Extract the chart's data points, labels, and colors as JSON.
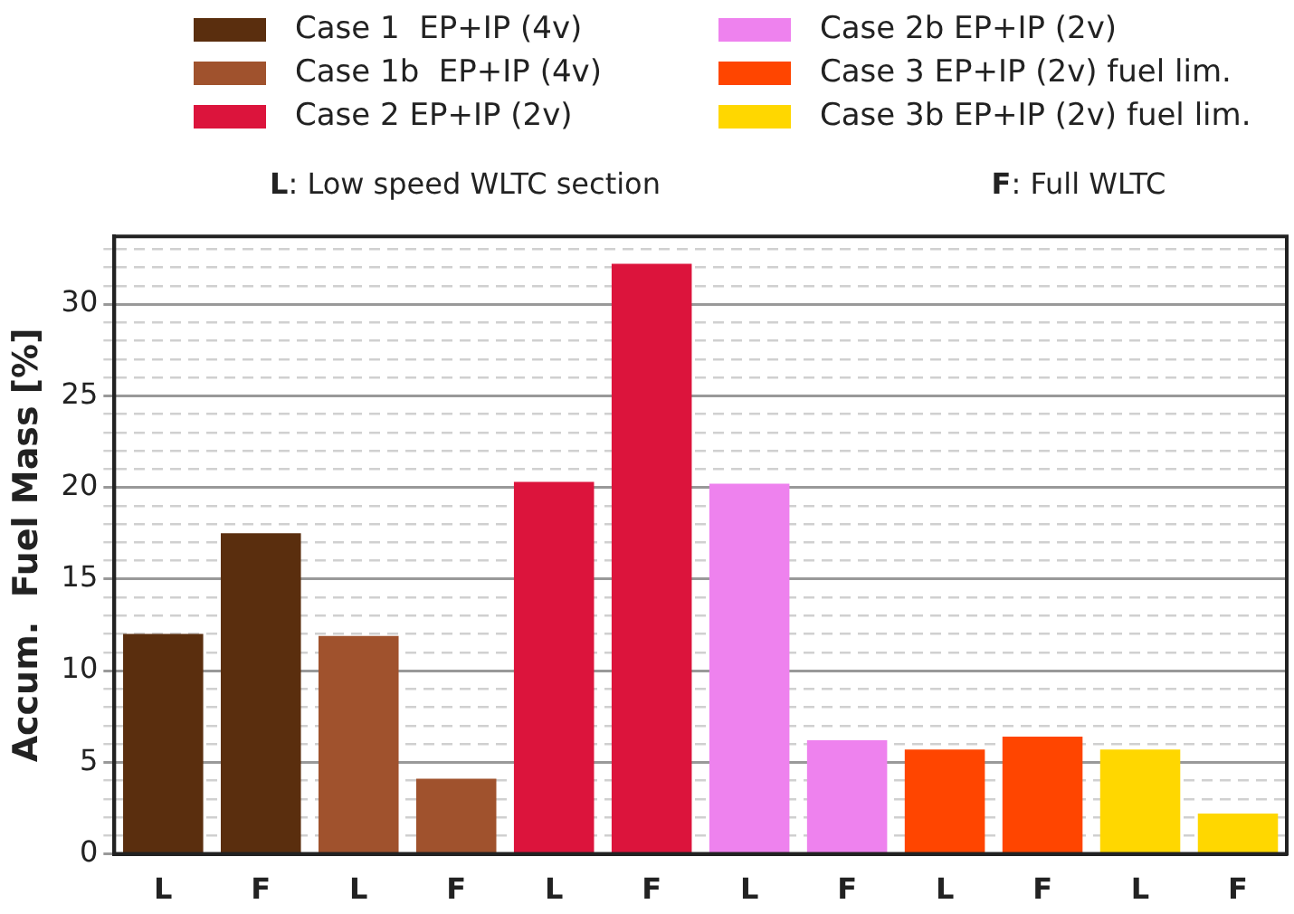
{
  "chart_data": {
    "type": "bar",
    "ylabel": "Accum.  Fuel Mass [%]",
    "annotations": [
      "L: Low speed WLTC section",
      "F: Full WLTC"
    ],
    "categories": [
      "L",
      "F",
      "L",
      "F",
      "L",
      "F",
      "L",
      "F",
      "L",
      "F",
      "L",
      "F"
    ],
    "series": [
      {
        "name": "Case 1  EP+IP (4v)",
        "color": "#5a2e0e",
        "values": [
          12.0,
          17.5,
          null,
          null,
          null,
          null,
          null,
          null,
          null,
          null,
          null,
          null
        ]
      },
      {
        "name": "Case 1b  EP+IP (4v)",
        "color": "#a0522d",
        "values": [
          null,
          null,
          11.9,
          4.1,
          null,
          null,
          null,
          null,
          null,
          null,
          null,
          null
        ]
      },
      {
        "name": "Case 2 EP+IP (2v)",
        "color": "#dc143c",
        "values": [
          null,
          null,
          null,
          null,
          20.3,
          32.2,
          null,
          null,
          null,
          null,
          null,
          null
        ]
      },
      {
        "name": "Case 2b EP+IP (2v)",
        "color": "#ee82ee",
        "values": [
          null,
          null,
          null,
          null,
          null,
          null,
          20.2,
          6.2,
          null,
          null,
          null,
          null
        ]
      },
      {
        "name": "Case 3 EP+IP (2v) fuel lim.",
        "color": "#ff4500",
        "values": [
          null,
          null,
          null,
          null,
          null,
          null,
          null,
          null,
          5.7,
          6.4,
          null,
          null
        ]
      },
      {
        "name": "Case 3b EP+IP (2v) fuel lim.",
        "color": "#ffd700",
        "values": [
          null,
          null,
          null,
          null,
          null,
          null,
          null,
          null,
          null,
          null,
          5.7,
          2.2
        ]
      }
    ],
    "ylim": [
      0,
      33.7
    ],
    "yticks": [
      0,
      {
        "value": 1,
        "label": null
      },
      {
        "value": 2,
        "label": null
      },
      {
        "value": 3,
        "label": null
      },
      {
        "value": 4,
        "label": null
      },
      5,
      {
        "value": 6,
        "label": null
      },
      {
        "value": 7,
        "label": null
      },
      {
        "value": 8,
        "label": null
      },
      {
        "value": 9,
        "label": null
      },
      10,
      {
        "value": 11,
        "label": null
      },
      {
        "value": 12,
        "label": null
      },
      {
        "value": 13,
        "label": null
      },
      {
        "value": 14,
        "label": null
      },
      15,
      {
        "value": 16,
        "label": null
      },
      {
        "value": 17,
        "label": null
      },
      {
        "value": 18,
        "label": null
      },
      {
        "value": 19,
        "label": null
      },
      20,
      {
        "value": 21,
        "label": null
      },
      {
        "value": 22,
        "label": null
      },
      {
        "value": 23,
        "label": null
      },
      {
        "value": 24,
        "label": null
      },
      25,
      {
        "value": 26,
        "label": null
      },
      {
        "value": 27,
        "label": null
      },
      {
        "value": 28,
        "label": null
      },
      {
        "value": 29,
        "label": null
      },
      30,
      {
        "value": 31,
        "label": null
      },
      {
        "value": 32,
        "label": null
      },
      {
        "value": 33,
        "label": null
      }
    ],
    "grid": "y",
    "legend": "top"
  }
}
